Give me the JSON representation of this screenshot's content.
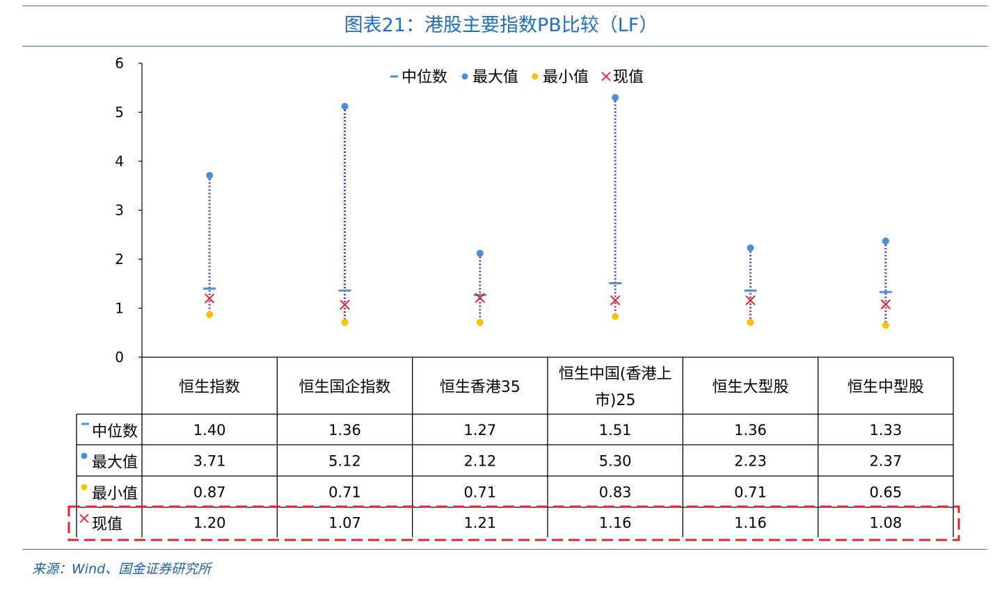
{
  "title": "图表21：港股主要指数PB比较（LF）",
  "source": "来源：Wind、国金证券研究所",
  "colors": {
    "title": "#1f6fc0",
    "median": "#4a90d9",
    "max": "#4a90d9",
    "min": "#ffc000",
    "current": "#e8202a",
    "range_line": "#7030a0",
    "highlight_box": "#e8202a"
  },
  "chart_data": {
    "type": "scatter",
    "ylim": [
      0,
      6
    ],
    "yticks": [
      "0",
      "1",
      "2",
      "3",
      "4",
      "5",
      "6"
    ],
    "grid": false,
    "legend_position": "top",
    "categories": [
      "恒生指数",
      "恒生国企指数",
      "恒生香港35",
      "恒生中国(香港上市)25",
      "恒生大型股",
      "恒生中型股"
    ],
    "category_lines": [
      [
        "恒生指数"
      ],
      [
        "恒生国企指数"
      ],
      [
        "恒生香港35"
      ],
      [
        "恒生中国(香港上",
        "市)25"
      ],
      [
        "恒生大型股"
      ],
      [
        "恒生中型股"
      ]
    ],
    "series": [
      {
        "name": "中位数",
        "key": "median",
        "marker": "dash",
        "values": [
          1.4,
          1.36,
          1.27,
          1.51,
          1.36,
          1.33
        ],
        "labels": [
          "1.40",
          "1.36",
          "1.27",
          "1.51",
          "1.36",
          "1.33"
        ]
      },
      {
        "name": "最大值",
        "key": "max",
        "marker": "circle",
        "values": [
          3.71,
          5.12,
          2.12,
          5.3,
          2.23,
          2.37
        ],
        "labels": [
          "3.71",
          "5.12",
          "2.12",
          "5.30",
          "2.23",
          "2.37"
        ]
      },
      {
        "name": "最小值",
        "key": "min",
        "marker": "circle",
        "values": [
          0.87,
          0.71,
          0.71,
          0.83,
          0.71,
          0.65
        ],
        "labels": [
          "0.87",
          "0.71",
          "0.71",
          "0.83",
          "0.71",
          "0.65"
        ]
      },
      {
        "name": "现值",
        "key": "current",
        "marker": "cross",
        "values": [
          1.2,
          1.07,
          1.21,
          1.16,
          1.16,
          1.08
        ],
        "labels": [
          "1.20",
          "1.07",
          "1.21",
          "1.16",
          "1.16",
          "1.08"
        ]
      }
    ]
  }
}
